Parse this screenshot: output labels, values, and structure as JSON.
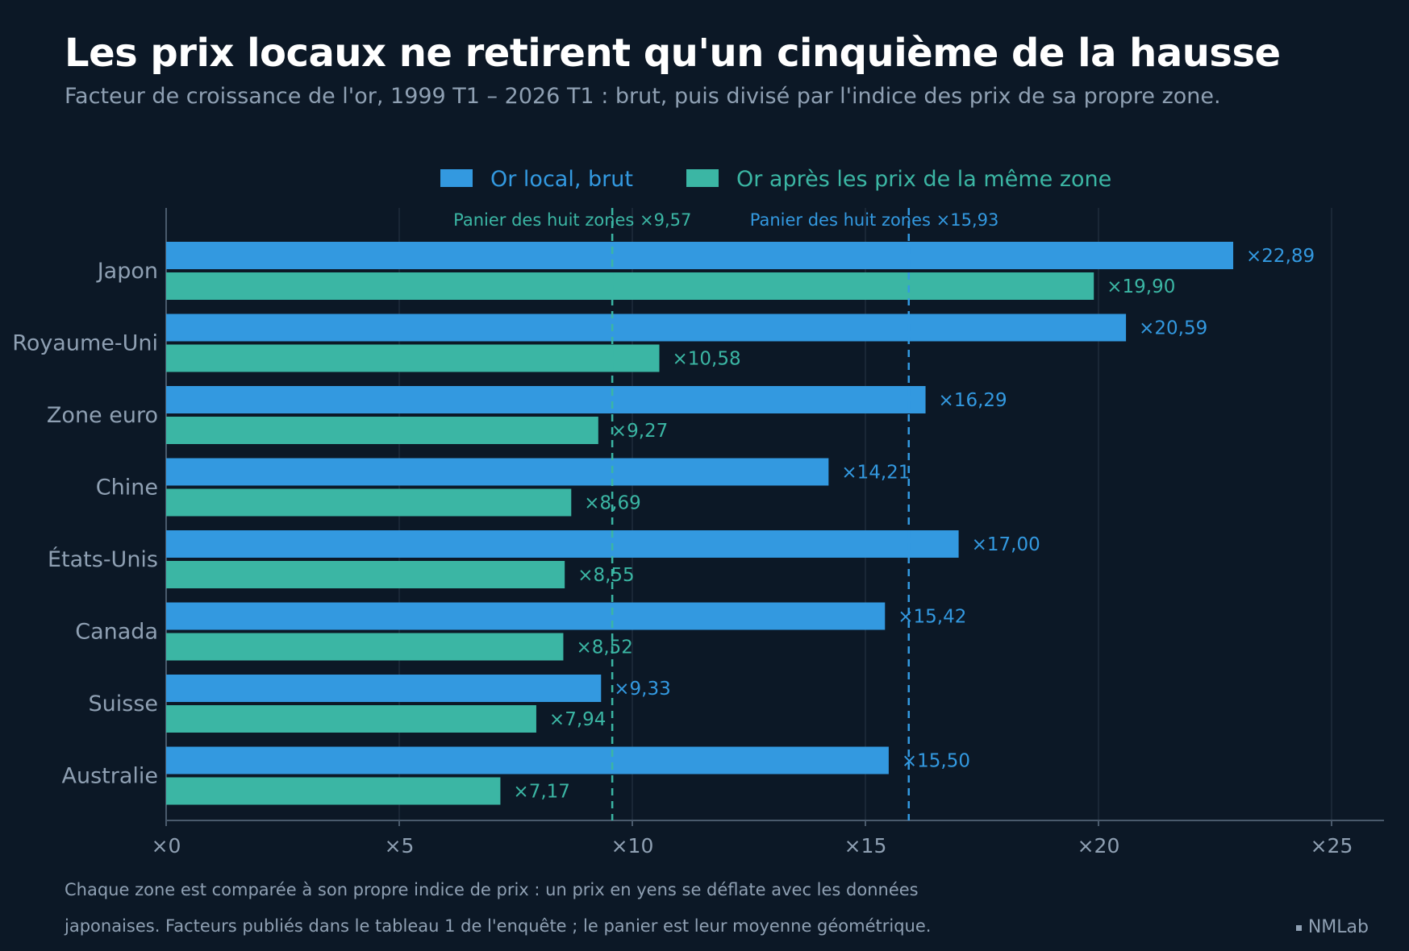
{
  "title": "Les prix locaux ne retirent qu'un cinquième de la hausse",
  "subtitle": "Facteur de croissance de l'or, 1999 T1 – 2026 T1 : brut, puis divisé par l'indice des prix de sa propre zone.",
  "footnote": "Chaque zone est comparée à son propre indice de prix : un prix en yens se déflate avec les données japonaises. Facteurs publiés dans le tableau 1 de l'enquête ; le panier est leur moyenne géométrique.",
  "brand": "NMLab",
  "colors": {
    "raw": "#3399e0",
    "deflated": "#3bb6a4",
    "background": "#0c1826",
    "grid": "#1f2c3c",
    "axis": "#4a5a6c",
    "muted": "#8fa0b3"
  },
  "chart_data": {
    "type": "bar",
    "orientation": "horizontal",
    "categories": [
      "Japon",
      "Royaume-Uni",
      "Zone euro",
      "Chine",
      "États-Unis",
      "Canada",
      "Suisse",
      "Australie"
    ],
    "series": [
      {
        "name": "Or local, brut",
        "color": "#3399e0",
        "values": [
          22.89,
          20.59,
          16.29,
          14.21,
          17.0,
          15.42,
          9.33,
          15.5
        ],
        "labels": [
          "×22,89",
          "×20,59",
          "×16,29",
          "×14,21",
          "×17,00",
          "×15,42",
          "×9,33",
          "×15,50"
        ]
      },
      {
        "name": "Or après les prix de la même zone",
        "color": "#3bb6a4",
        "values": [
          19.9,
          10.58,
          9.27,
          8.69,
          8.55,
          8.52,
          7.94,
          7.17
        ],
        "labels": [
          "×19,90",
          "×10,58",
          "×9,27",
          "×8,69",
          "×8,55",
          "×8,52",
          "×7,94",
          "×7,17"
        ]
      }
    ],
    "reference_lines": [
      {
        "label": "Panier des huit zones ×9,57",
        "value": 9.57,
        "color": "#3bb6a4"
      },
      {
        "label": "Panier des huit zones ×15,93",
        "value": 15.93,
        "color": "#3399e0"
      }
    ],
    "xlim": [
      0,
      25
    ],
    "xticks": [
      0,
      5,
      10,
      15,
      20,
      25
    ],
    "xtick_labels": [
      "×0",
      "×5",
      "×10",
      "×15",
      "×20",
      "×25"
    ],
    "grid": true,
    "legend_position": "top-center"
  }
}
